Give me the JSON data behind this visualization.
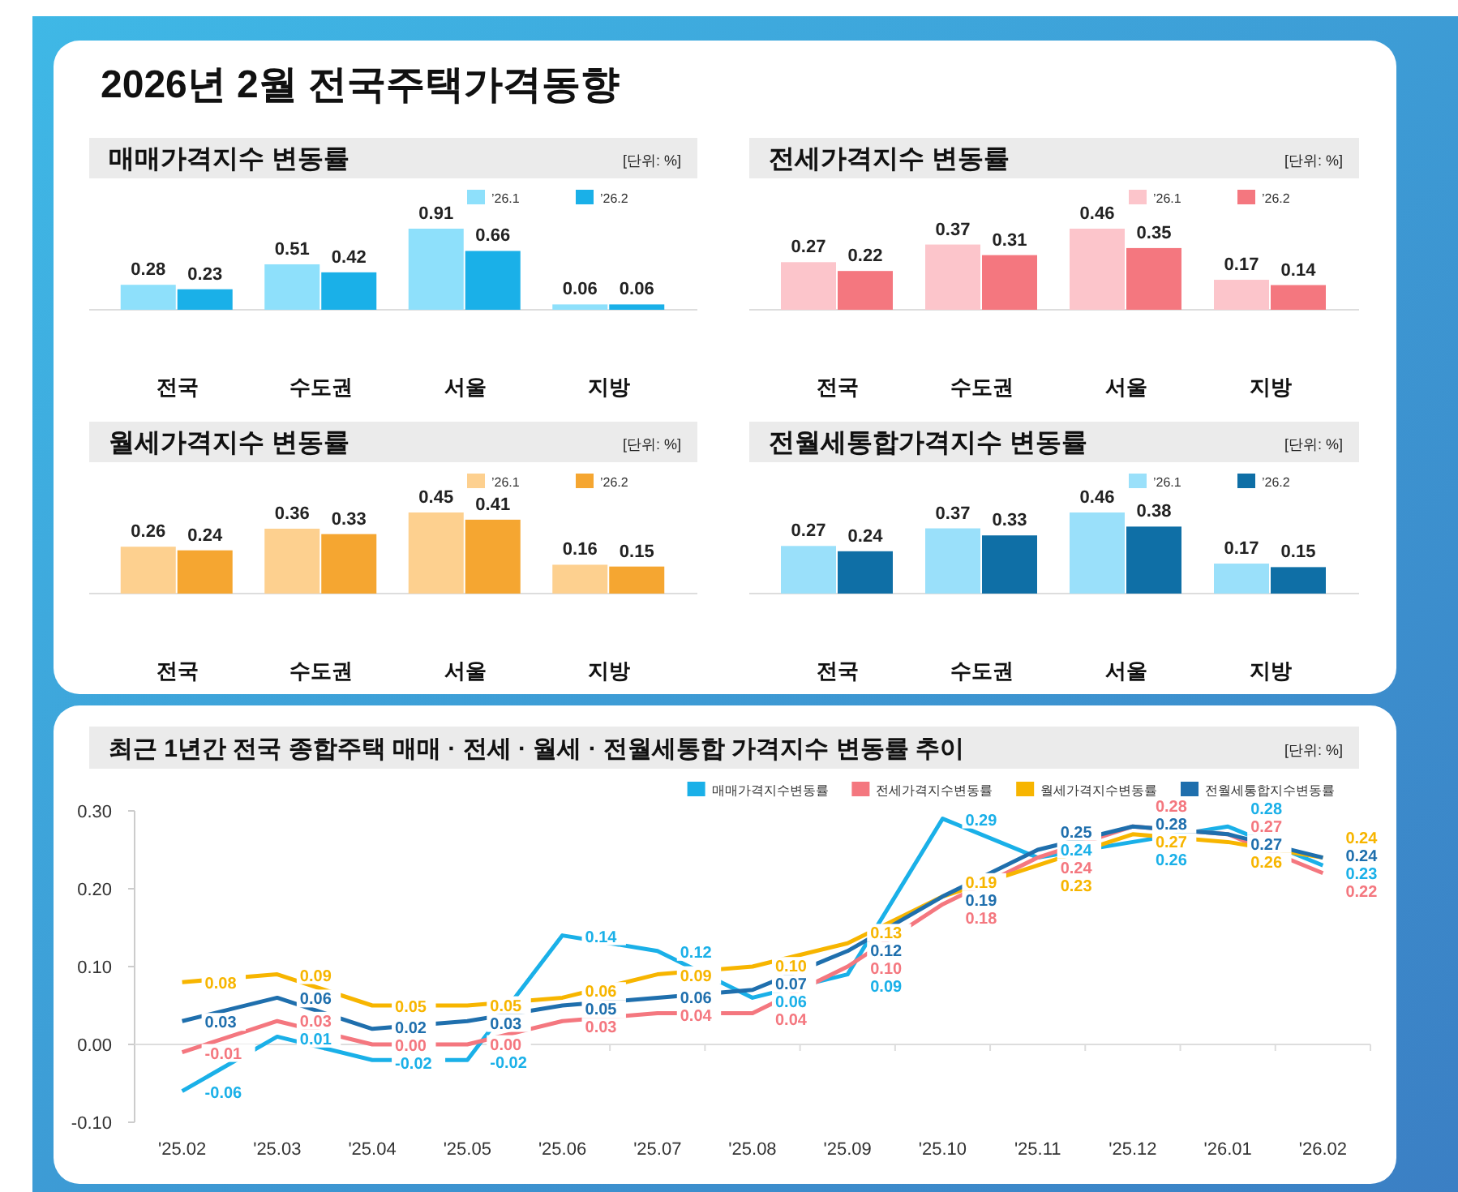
{
  "chart_data": [
    {
      "type": "other",
      "title": "2026년 2월 전국주택가격동향"
    },
    {
      "type": "bar",
      "title": "매매가격지수 변동률",
      "annotations": [
        "[단위: %]"
      ],
      "categories": [
        "전국",
        "수도권",
        "서울",
        "지방"
      ],
      "data_labels": true,
      "legend": "top right",
      "series": [
        {
          "name": "’26.1",
          "color": "#8ee0fb",
          "values": [
            0.28,
            0.51,
            0.91,
            0.06
          ]
        },
        {
          "name": "’26.2",
          "color": "#1ab0e8",
          "values": [
            0.23,
            0.42,
            0.66,
            0.06
          ]
        }
      ]
    },
    {
      "type": "bar",
      "title": "전세가격지수 변동률",
      "annotations": [
        "[단위: %]"
      ],
      "categories": [
        "전국",
        "수도권",
        "서울",
        "지방"
      ],
      "data_labels": true,
      "legend": "top right",
      "series": [
        {
          "name": "’26.1",
          "color": "#fcc5cb",
          "values": [
            0.27,
            0.37,
            0.46,
            0.17
          ]
        },
        {
          "name": "’26.2",
          "color": "#f4777f",
          "values": [
            0.22,
            0.31,
            0.35,
            0.14
          ]
        }
      ]
    },
    {
      "type": "bar",
      "title": "월세가격지수 변동률",
      "annotations": [
        "[단위: %]"
      ],
      "categories": [
        "전국",
        "수도권",
        "서울",
        "지방"
      ],
      "data_labels": true,
      "legend": "top right",
      "series": [
        {
          "name": "’26.1",
          "color": "#fdd08f",
          "values": [
            0.26,
            0.36,
            0.45,
            0.16
          ]
        },
        {
          "name": "’26.2",
          "color": "#f5a631",
          "values": [
            0.24,
            0.33,
            0.41,
            0.15
          ]
        }
      ]
    },
    {
      "type": "bar",
      "title": "전월세통합가격지수 변동률",
      "annotations": [
        "[단위: %]"
      ],
      "categories": [
        "전국",
        "수도권",
        "서울",
        "지방"
      ],
      "data_labels": true,
      "legend": "top right",
      "series": [
        {
          "name": "’26.1",
          "color": "#9ae0fa",
          "values": [
            0.27,
            0.37,
            0.46,
            0.17
          ]
        },
        {
          "name": "’26.2",
          "color": "#0f6fa6",
          "values": [
            0.24,
            0.33,
            0.38,
            0.15
          ]
        }
      ]
    },
    {
      "type": "line",
      "title": "최근 1년간 전국 종합주택 매매 · 전세 · 월세 · 전월세통합 가격지수 변동률 추이",
      "annotations": [
        "[단위: %]"
      ],
      "categories": [
        "'25.02",
        "'25.03",
        "'25.04",
        "'25.05",
        "'25.06",
        "'25.07",
        "'25.08",
        "'25.09",
        "'25.10",
        "'25.11",
        "'25.12",
        "'26.01",
        "'26.02"
      ],
      "ylim": [
        -0.1,
        0.3
      ],
      "yticks": [
        {
          "value": 0.3,
          "label": "0.30"
        },
        {
          "value": 0.2,
          "label": "0.20"
        },
        {
          "value": 0.1,
          "label": "0.10"
        },
        {
          "value": 0,
          "label": "0.00"
        },
        {
          "value": -0.1,
          "label": "-0.10"
        }
      ],
      "legend": "top right",
      "series": [
        {
          "name": "매매가격지수변동률",
          "color": "#1ab0e8",
          "values": [
            -0.06,
            0.01,
            -0.02,
            -0.02,
            0.14,
            0.12,
            0.06,
            0.09,
            0.29,
            0.24,
            0.26,
            0.28,
            0.23
          ],
          "value_labels": [
            "-0.06",
            "0.01",
            "-0.02",
            "-0.02",
            "0.14",
            "0.12",
            "0.06",
            "0.09",
            "0.29",
            "0.24",
            "0.26",
            "0.28",
            "0.23"
          ]
        },
        {
          "name": "전세가격지수변동률",
          "color": "#f4777f",
          "values": [
            -0.01,
            0.03,
            0.0,
            0.0,
            0.03,
            0.04,
            0.04,
            0.1,
            0.18,
            0.24,
            0.28,
            0.27,
            0.22
          ],
          "value_labels": [
            "-0.01",
            "0.03",
            "0.00",
            "0.00",
            "0.03",
            "0.04",
            "0.04",
            "0.10",
            "0.18",
            "0.24",
            "0.28",
            "0.27",
            "0.22"
          ]
        },
        {
          "name": "월세가격지수변동률",
          "color": "#f7b500",
          "values": [
            0.08,
            0.09,
            0.05,
            0.05,
            0.06,
            0.09,
            0.1,
            0.13,
            0.19,
            0.23,
            0.27,
            0.26,
            0.24
          ],
          "value_labels": [
            "0.08",
            "0.09",
            "0.05",
            "0.05",
            "0.06",
            "0.09",
            "0.10",
            "0.13",
            "0.19",
            "0.23",
            "0.27",
            "0.26",
            "0.24"
          ]
        },
        {
          "name": "전월세통합지수변동률",
          "color": "#1f6fad",
          "values": [
            0.03,
            0.06,
            0.02,
            0.03,
            0.05,
            0.06,
            0.07,
            0.12,
            0.19,
            0.25,
            0.28,
            0.27,
            0.24
          ],
          "value_labels": [
            "0.03",
            "0.06",
            "0.02",
            "0.03",
            "0.05",
            "0.06",
            "0.07",
            "0.12",
            "0.19",
            "0.25",
            "0.28",
            "0.27",
            "0.24"
          ]
        }
      ]
    }
  ]
}
